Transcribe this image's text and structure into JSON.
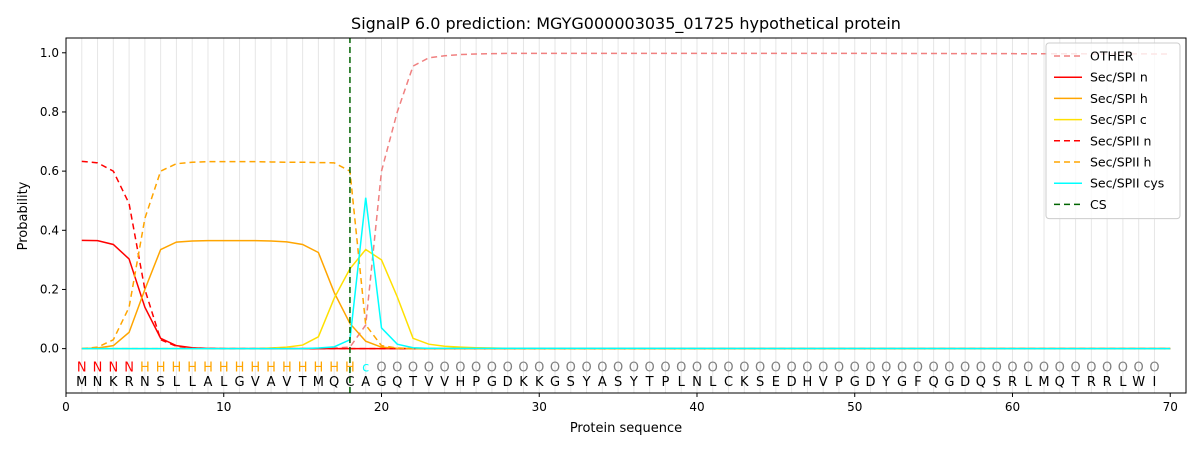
{
  "chart_data": {
    "type": "line",
    "title": "SignalP 6.0 prediction: MGYG000003035_01725 hypothetical protein",
    "xlabel": "Protein sequence",
    "ylabel": "Probability",
    "xlim": [
      0,
      71
    ],
    "ylim": [
      -0.15,
      1.05
    ],
    "xticks": [
      0,
      10,
      20,
      30,
      40,
      50,
      60,
      70
    ],
    "yticks": [
      0.0,
      0.2,
      0.4,
      0.6,
      0.8,
      1.0
    ],
    "ytick_labels": [
      "0.0",
      "0.2",
      "0.4",
      "0.6",
      "0.8",
      "1.0"
    ],
    "legend_position": "top-right",
    "vertical_grid": "light gray line at every residue position",
    "sequence": "MNKRNSLLALGVAVTMQCAGQTVVHPGDKKGSYASYTPLNLCKSEDHVPGDYGFQGDQSRLMQTRRLWI",
    "annotation": "NNNNHHHHHHHHHHHHHHcOOOOOOOOOOOOOOOOOOOOOOOOOOOOOOOOOOOOOOOOOOOOOOOOOOOO",
    "annotation_colors": {
      "N": "#ff0000",
      "H": "#ffa500",
      "c": "#00ffff",
      "O": "#808080"
    },
    "cleavage_site": 18,
    "series": [
      {
        "name": "OTHER",
        "color": "#f08080",
        "dash": "dashed",
        "x": [
          1,
          2,
          3,
          4,
          5,
          6,
          7,
          8,
          9,
          10,
          11,
          12,
          13,
          14,
          15,
          16,
          17,
          18,
          19,
          20,
          21,
          22,
          23,
          24,
          25,
          26,
          27,
          28,
          29,
          30,
          40,
          50,
          60,
          70
        ],
        "y": [
          0,
          0,
          0,
          0,
          0,
          0,
          0,
          0,
          0,
          0,
          0,
          0,
          0,
          0,
          0,
          0,
          0.002,
          0.005,
          0.08,
          0.6,
          0.8,
          0.955,
          0.983,
          0.99,
          0.994,
          0.996,
          0.997,
          0.998,
          0.998,
          0.998,
          0.998,
          0.998,
          0.997,
          0.996
        ]
      },
      {
        "name": "Sec/SPI n",
        "color": "#ff0000",
        "dash": "solid",
        "x": [
          1,
          2,
          3,
          4,
          5,
          6,
          7,
          8,
          9,
          10,
          15,
          18,
          19,
          20,
          70
        ],
        "y": [
          0.366,
          0.365,
          0.352,
          0.303,
          0.14,
          0.035,
          0.01,
          0.003,
          0.001,
          0,
          0,
          0,
          0,
          0,
          0
        ]
      },
      {
        "name": "Sec/SPI h",
        "color": "#ffa500",
        "dash": "solid",
        "x": [
          1,
          2,
          3,
          4,
          5,
          6,
          7,
          8,
          9,
          10,
          11,
          12,
          13,
          14,
          15,
          16,
          17,
          18,
          19,
          20,
          21,
          22,
          70
        ],
        "y": [
          0,
          0.002,
          0.01,
          0.055,
          0.2,
          0.335,
          0.36,
          0.364,
          0.365,
          0.365,
          0.365,
          0.365,
          0.364,
          0.361,
          0.352,
          0.325,
          0.19,
          0.085,
          0.025,
          0.005,
          0.001,
          0,
          0
        ]
      },
      {
        "name": "Sec/SPI c",
        "color": "#ffe000",
        "dash": "solid",
        "x": [
          1,
          12,
          13,
          14,
          15,
          16,
          17,
          18,
          19,
          20,
          21,
          22,
          23,
          24,
          25,
          26,
          27,
          28,
          30,
          70
        ],
        "y": [
          0,
          0,
          0.002,
          0.005,
          0.012,
          0.04,
          0.17,
          0.27,
          0.335,
          0.3,
          0.175,
          0.035,
          0.015,
          0.008,
          0.005,
          0.003,
          0.002,
          0.001,
          0,
          0
        ]
      },
      {
        "name": "Sec/SPII n",
        "color": "#ff0000",
        "dash": "dashed",
        "x": [
          1,
          2,
          3,
          4,
          5,
          6,
          7,
          8,
          9,
          10,
          15,
          18,
          70
        ],
        "y": [
          0.633,
          0.628,
          0.6,
          0.49,
          0.2,
          0.03,
          0.008,
          0.002,
          0.001,
          0,
          0,
          0,
          0
        ]
      },
      {
        "name": "Sec/SPII h",
        "color": "#ffa500",
        "dash": "dashed",
        "x": [
          1,
          2,
          3,
          4,
          5,
          6,
          7,
          8,
          9,
          10,
          11,
          12,
          13,
          14,
          15,
          16,
          17,
          18,
          19,
          20,
          21,
          22,
          70
        ],
        "y": [
          0,
          0.005,
          0.03,
          0.14,
          0.44,
          0.6,
          0.625,
          0.63,
          0.632,
          0.632,
          0.632,
          0.632,
          0.631,
          0.63,
          0.63,
          0.629,
          0.628,
          0.6,
          0.08,
          0.01,
          0.002,
          0,
          0
        ]
      },
      {
        "name": "Sec/SPII cys",
        "color": "#00ffff",
        "dash": "solid",
        "x": [
          1,
          15,
          16,
          17,
          18,
          19,
          20,
          21,
          22,
          23,
          70
        ],
        "y": [
          0,
          0,
          0.002,
          0.006,
          0.03,
          0.51,
          0.07,
          0.015,
          0.003,
          0.001,
          0
        ]
      },
      {
        "name": "CS",
        "color": "#006400",
        "dash": "dashed",
        "x": [
          18,
          18
        ],
        "y": [
          -0.15,
          1.05
        ]
      }
    ]
  }
}
